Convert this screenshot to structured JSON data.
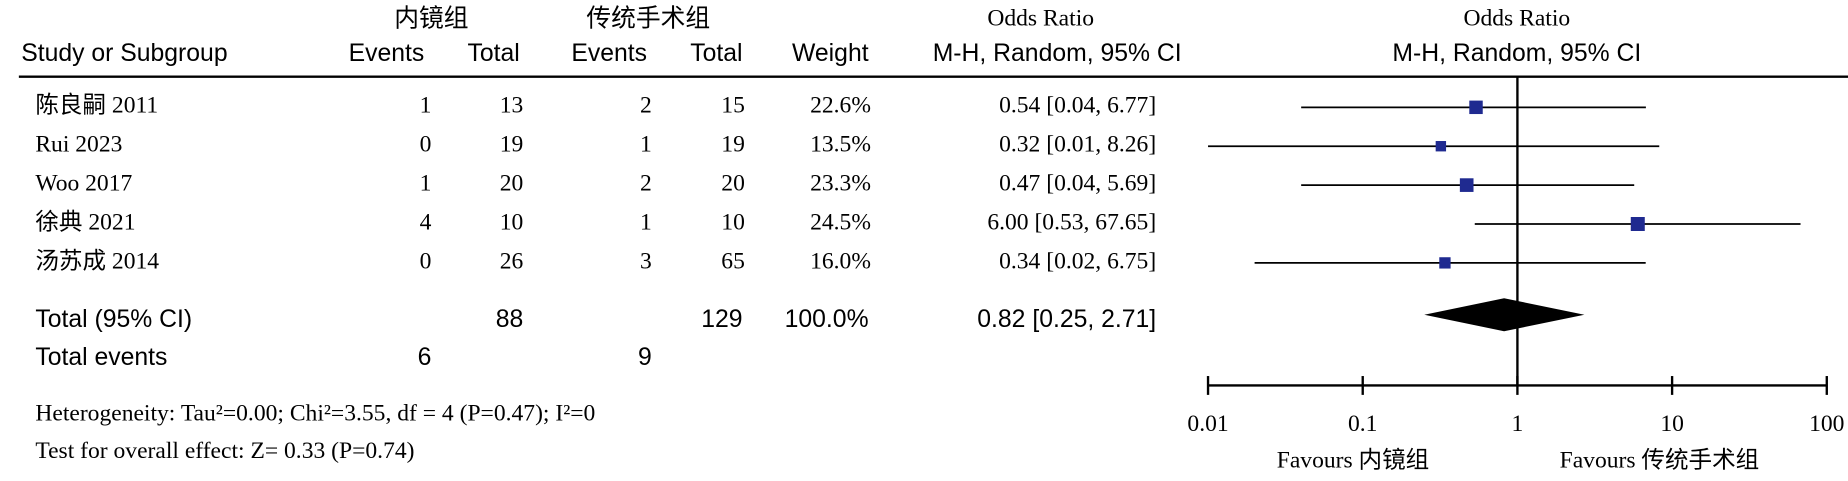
{
  "chart_data": {
    "type": "forest",
    "group_headers": [
      "内镜组",
      "传统手术组"
    ],
    "columns": [
      "Study or Subgroup",
      "Events",
      "Total",
      "Events",
      "Total",
      "Weight"
    ],
    "or_header": [
      "Odds Ratio",
      "M-H, Random, 95% CI"
    ],
    "plot_header": [
      "Odds Ratio",
      "M-H, Random, 95% CI"
    ],
    "studies": [
      {
        "name": "陈良嗣 2011",
        "events1": 1,
        "total1": 13,
        "events2": 2,
        "total2": 15,
        "weight": 22.6,
        "weight_label": "22.6%",
        "or": 0.54,
        "ci": [
          0.04,
          6.77
        ],
        "or_label": "0.54 [0.04, 6.77]"
      },
      {
        "name": "Rui 2023",
        "events1": 0,
        "total1": 19,
        "events2": 1,
        "total2": 19,
        "weight": 13.5,
        "weight_label": "13.5%",
        "or": 0.32,
        "ci": [
          0.01,
          8.26
        ],
        "or_label": "0.32 [0.01, 8.26]"
      },
      {
        "name": "Woo 2017",
        "events1": 1,
        "total1": 20,
        "events2": 2,
        "total2": 20,
        "weight": 23.3,
        "weight_label": "23.3%",
        "or": 0.47,
        "ci": [
          0.04,
          5.69
        ],
        "or_label": "0.47 [0.04, 5.69]"
      },
      {
        "name": "徐典 2021",
        "events1": 4,
        "total1": 10,
        "events2": 1,
        "total2": 10,
        "weight": 24.5,
        "weight_label": "24.5%",
        "or": 6.0,
        "ci": [
          0.53,
          67.65
        ],
        "or_label": "6.00 [0.53, 67.65]"
      },
      {
        "name": "汤苏成 2014",
        "events1": 0,
        "total1": 26,
        "events2": 3,
        "total2": 65,
        "weight": 16.0,
        "weight_label": "16.0%",
        "or": 0.34,
        "ci": [
          0.02,
          6.75
        ],
        "or_label": "0.34 [0.02, 6.75]"
      }
    ],
    "total": {
      "name": "Total (95% CI)",
      "total1": 88,
      "total2": 129,
      "weight": 100.0,
      "weight_label": "100.0%",
      "or": 0.82,
      "ci": [
        0.25,
        2.71
      ],
      "or_label": "0.82 [0.25, 2.71]"
    },
    "total_events": {
      "name": "Total events",
      "events1": 6,
      "events2": 9
    },
    "heterogeneity": "Heterogeneity: Tau²=0.00; Chi²=3.55, df = 4 (P=0.47); I²=0",
    "overall_effect": "Test for overall effect: Z= 0.33 (P=0.74)",
    "log_x": true,
    "xlim": [
      0.01,
      100
    ],
    "xticks": [
      0.01,
      0.1,
      1,
      10,
      100
    ],
    "favours": [
      "Favours 内镜组",
      "Favours 传统手术组"
    ],
    "marker_color": "#1f2a90"
  }
}
